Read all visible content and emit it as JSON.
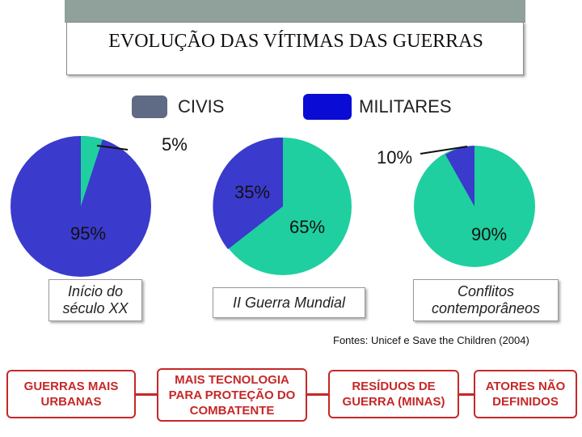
{
  "title": "EVOLUÇÃO DAS VÍTIMAS DAS GUERRAS",
  "legend": {
    "civis_label": "CIVIS",
    "militares_label": "MILITARES",
    "civis_color": "#5f6b84",
    "militares_color": "#0b0bd6"
  },
  "colors": {
    "civilian_slice": "#20cf9f",
    "military_slice": "#3a3acc",
    "accent_red": "#c62828"
  },
  "pies": [
    {
      "caption": "Início do século XX",
      "military_pct": "95%",
      "civilian_pct": "5%"
    },
    {
      "caption": "II Guerra Mundial",
      "military_pct": "35%",
      "civilian_pct": "65%"
    },
    {
      "caption": "Conflitos contemporâneos",
      "military_pct": "10%",
      "civilian_pct": "90%"
    }
  ],
  "source": "Fontes: Unicef e Save the Children (2004)",
  "causes": [
    "GUERRAS MAIS URBANAS",
    "MAIS TECNOLOGIA PARA PROTEÇÃO DO COMBATENTE",
    "RESÍDUOS DE GUERRA (MINAS)",
    "ATORES NÃO DEFINIDOS"
  ]
}
